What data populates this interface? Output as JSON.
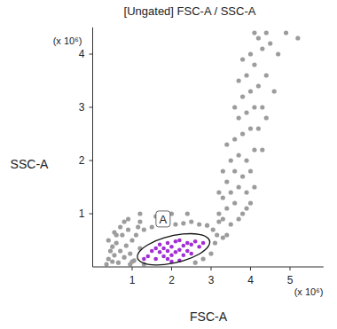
{
  "chart_data": {
    "type": "scatter",
    "title": "[Ungated] FSC-A / SSC-A",
    "x_label": "FSC-A",
    "y_label": "SSC-A",
    "x_axis_unit": "(x 10⁶)",
    "y_axis_unit": "(x 10⁶)",
    "xlim": [
      0,
      5.85
    ],
    "ylim": [
      0,
      4.5
    ],
    "xticks": [
      1,
      2,
      3,
      4,
      5
    ],
    "yticks": [
      1,
      2,
      3,
      4
    ],
    "marker": "dot",
    "series": [
      {
        "color": "#9c9c9c",
        "x": [
          0.35,
          0.4,
          0.45,
          0.5,
          0.55,
          0.6,
          0.65,
          0.7,
          0.75,
          0.8,
          0.85,
          0.9,
          0.95,
          1.0,
          1.05,
          0.5,
          0.6,
          0.7,
          0.8,
          0.9,
          1.0,
          1.1,
          1.15,
          1.2,
          0.4,
          0.55,
          0.95,
          1.3,
          1.5,
          1.7,
          1.9,
          2.1,
          2.3,
          2.5,
          2.7,
          2.9,
          3.05,
          3.1,
          3.15,
          3.0,
          2.8,
          2.6,
          1.3,
          1.2,
          3.2,
          3.3,
          1.6,
          2.0,
          2.4,
          1.2,
          3.2,
          3.3,
          3.4,
          3.4,
          3.5,
          3.5,
          3.6,
          3.6,
          3.6,
          3.7,
          3.7,
          3.7,
          3.8,
          3.8,
          3.8,
          3.8,
          3.9,
          3.9,
          3.9,
          3.9,
          4.0,
          4.0,
          4.0,
          4.0,
          4.1,
          4.1,
          4.1,
          4.1,
          4.2,
          4.2,
          4.3,
          4.3,
          4.4,
          4.4,
          4.5,
          3.3,
          3.5,
          3.7,
          3.9,
          4.1,
          4.3,
          4.4,
          3.4,
          3.4,
          3.6,
          3.8,
          3.7,
          4.2,
          4.6,
          4.7,
          3.3,
          3.2,
          4.9,
          5.2,
          4.0
        ],
        "values": [
          0.05,
          0.15,
          0.3,
          0.1,
          0.22,
          0.45,
          0.08,
          0.3,
          0.6,
          0.18,
          0.4,
          0.7,
          0.25,
          0.5,
          0.12,
          0.38,
          0.6,
          0.75,
          0.85,
          0.9,
          0.1,
          0.6,
          0.75,
          0.85,
          0.5,
          0.65,
          0.05,
          0.7,
          0.75,
          0.8,
          0.82,
          0.8,
          0.82,
          0.85,
          0.8,
          0.78,
          0.7,
          0.45,
          0.6,
          0.25,
          0.15,
          0.08,
          0.05,
          0.35,
          0.85,
          0.55,
          0.95,
          1.0,
          1.0,
          1.0,
          1.0,
          1.3,
          1.1,
          1.6,
          1.4,
          2.0,
          1.2,
          1.8,
          2.4,
          1.5,
          2.1,
          2.8,
          1.0,
          1.7,
          2.5,
          3.2,
          1.4,
          2.0,
          2.9,
          3.6,
          1.8,
          2.6,
          3.3,
          4.0,
          2.2,
          3.0,
          3.8,
          4.4,
          2.6,
          3.4,
          3.0,
          4.1,
          3.6,
          4.4,
          4.2,
          0.9,
          0.8,
          0.9,
          1.1,
          1.5,
          2.2,
          2.8,
          0.6,
          2.3,
          3.0,
          3.9,
          3.5,
          4.3,
          3.3,
          4.0,
          1.8,
          1.4,
          4.4,
          4.3,
          1.2
        ]
      },
      {
        "color": "#a22fd4",
        "x": [
          1.4,
          1.5,
          1.6,
          1.7,
          1.7,
          1.8,
          1.8,
          1.9,
          1.9,
          1.9,
          2.0,
          2.0,
          2.1,
          2.1,
          2.2,
          2.2,
          2.3,
          2.3,
          2.4,
          2.5,
          2.6,
          1.6,
          2.0,
          2.4,
          2.7,
          1.3,
          2.2,
          2.5,
          2.8
        ],
        "values": [
          0.2,
          0.3,
          0.15,
          0.28,
          0.42,
          0.2,
          0.35,
          0.15,
          0.3,
          0.45,
          0.22,
          0.38,
          0.28,
          0.48,
          0.32,
          0.5,
          0.4,
          0.22,
          0.45,
          0.42,
          0.48,
          0.35,
          0.1,
          0.3,
          0.38,
          0.15,
          0.12,
          0.25,
          0.45
        ]
      }
    ],
    "gates": [
      {
        "label": "A",
        "x": [
          3.0,
          2.873,
          2.525,
          2.05,
          1.575,
          1.227,
          1.1,
          1.227,
          1.575,
          2.05,
          2.525,
          2.873
        ],
        "y": [
          0.47,
          0.588,
          0.635,
          0.6,
          0.493,
          0.342,
          0.188,
          0.072,
          0.025,
          0.06,
          0.167,
          0.318
        ]
      }
    ]
  }
}
